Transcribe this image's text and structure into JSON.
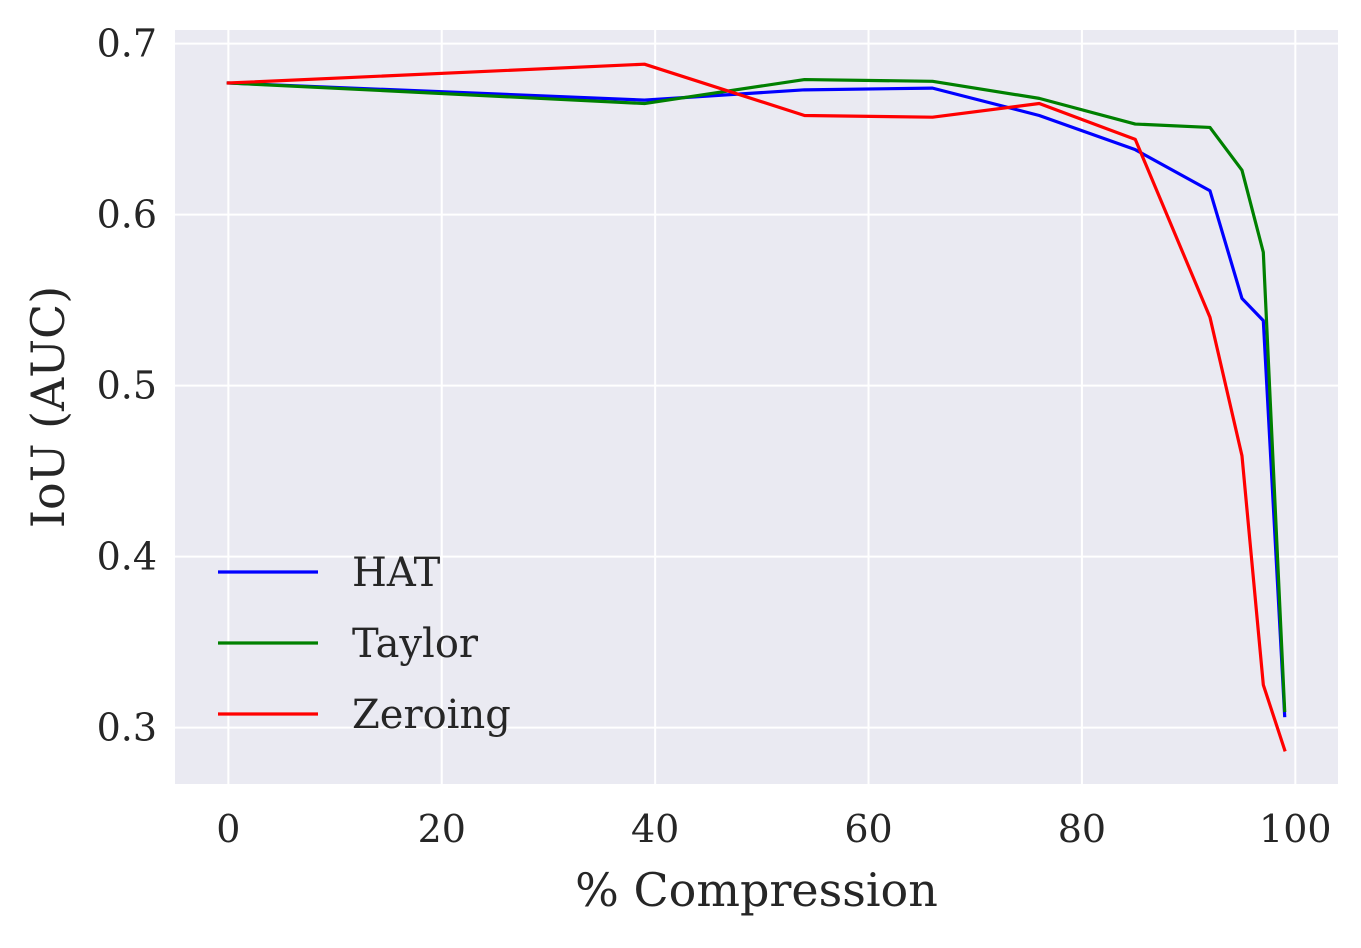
{
  "chart_data": {
    "type": "line",
    "title": "",
    "xlabel": "% Compression",
    "ylabel": "IoU (AUC)",
    "xlim": [
      -5,
      104
    ],
    "ylim": [
      0.267,
      0.708
    ],
    "xticks": [
      0,
      20,
      40,
      60,
      80,
      100
    ],
    "yticks": [
      0.3,
      0.4,
      0.5,
      0.6,
      0.7
    ],
    "xtick_labels": [
      "0",
      "20",
      "40",
      "60",
      "80",
      "100"
    ],
    "ytick_labels": [
      "0.3",
      "0.4",
      "0.5",
      "0.6",
      "0.7"
    ],
    "grid": true,
    "legend_position": "lower-left",
    "background_color": "#eaeaf2",
    "grid_color": "#ffffff",
    "series": [
      {
        "name": "HAT",
        "color": "#0000ff",
        "x": [
          0,
          39,
          54,
          66,
          76,
          85,
          92,
          95,
          97,
          99
        ],
        "y": [
          0.677,
          0.667,
          0.673,
          0.674,
          0.658,
          0.638,
          0.614,
          0.551,
          0.538,
          0.307
        ]
      },
      {
        "name": "Taylor",
        "color": "#008000",
        "x": [
          0,
          39,
          54,
          66,
          76,
          85,
          92,
          95,
          97,
          99
        ],
        "y": [
          0.677,
          0.665,
          0.679,
          0.678,
          0.668,
          0.653,
          0.651,
          0.626,
          0.578,
          0.31
        ]
      },
      {
        "name": "Zeroing",
        "color": "#ff0000",
        "x": [
          0,
          39,
          54,
          66,
          76,
          85,
          92,
          95,
          97,
          99
        ],
        "y": [
          0.677,
          0.688,
          0.658,
          0.657,
          0.665,
          0.644,
          0.54,
          0.459,
          0.325,
          0.287
        ]
      }
    ]
  }
}
